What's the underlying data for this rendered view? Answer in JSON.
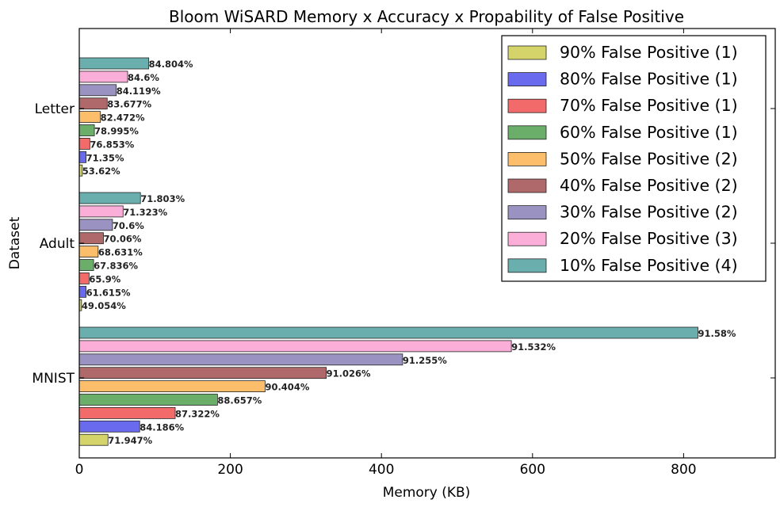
{
  "chart_data": {
    "type": "bar",
    "orientation": "horizontal",
    "title": "Bloom WiSARD Memory x Accuracy x Propability of False Positive",
    "xlabel": "Memory (KB)",
    "ylabel": "Dataset",
    "xlim": [
      0,
      920
    ],
    "xticks": [
      "0",
      "200",
      "400",
      "600",
      "800"
    ],
    "categories": [
      "Letter",
      "Adult",
      "MNIST"
    ],
    "legend_position": "top-right",
    "series": [
      {
        "name": "90% False Positive (1)",
        "color": "#d4d46a",
        "values": [
          4,
          3,
          38
        ],
        "labels": [
          "53.62%",
          "49.054%",
          "71.947%"
        ]
      },
      {
        "name": "80% False Positive (1)",
        "color": "#6a6aee",
        "values": [
          9,
          9,
          80
        ],
        "labels": [
          "71.35%",
          "61.615%",
          "84.186%"
        ]
      },
      {
        "name": "70% False Positive (1)",
        "color": "#f26a6a",
        "values": [
          14,
          13,
          127
        ],
        "labels": [
          "76.853%",
          "65.9%",
          "87.322%"
        ]
      },
      {
        "name": "60% False Positive (1)",
        "color": "#6aae6a",
        "values": [
          20,
          19,
          183
        ],
        "labels": [
          "78.995%",
          "67.836%",
          "88.657%"
        ]
      },
      {
        "name": "50% False Positive (2)",
        "color": "#fcbe6a",
        "values": [
          28,
          25,
          246
        ],
        "labels": [
          "82.472%",
          "68.631%",
          "90.404%"
        ]
      },
      {
        "name": "40% False Positive (2)",
        "color": "#b0696a",
        "values": [
          37,
          32,
          327
        ],
        "labels": [
          "83.677%",
          "70.06%",
          "91.026%"
        ]
      },
      {
        "name": "30% False Positive (2)",
        "color": "#9a92c0",
        "values": [
          49,
          44,
          428
        ],
        "labels": [
          "84.119%",
          "70.6%",
          "91.255%"
        ]
      },
      {
        "name": "20% False Positive (3)",
        "color": "#fbaed8",
        "values": [
          64,
          58,
          572
        ],
        "labels": [
          "84.6%",
          "71.323%",
          "91.532%"
        ]
      },
      {
        "name": "10% False Positive (4)",
        "color": "#6aaeae",
        "values": [
          92,
          81,
          819
        ],
        "labels": [
          "84.804%",
          "71.803%",
          "91.58%"
        ]
      }
    ]
  }
}
